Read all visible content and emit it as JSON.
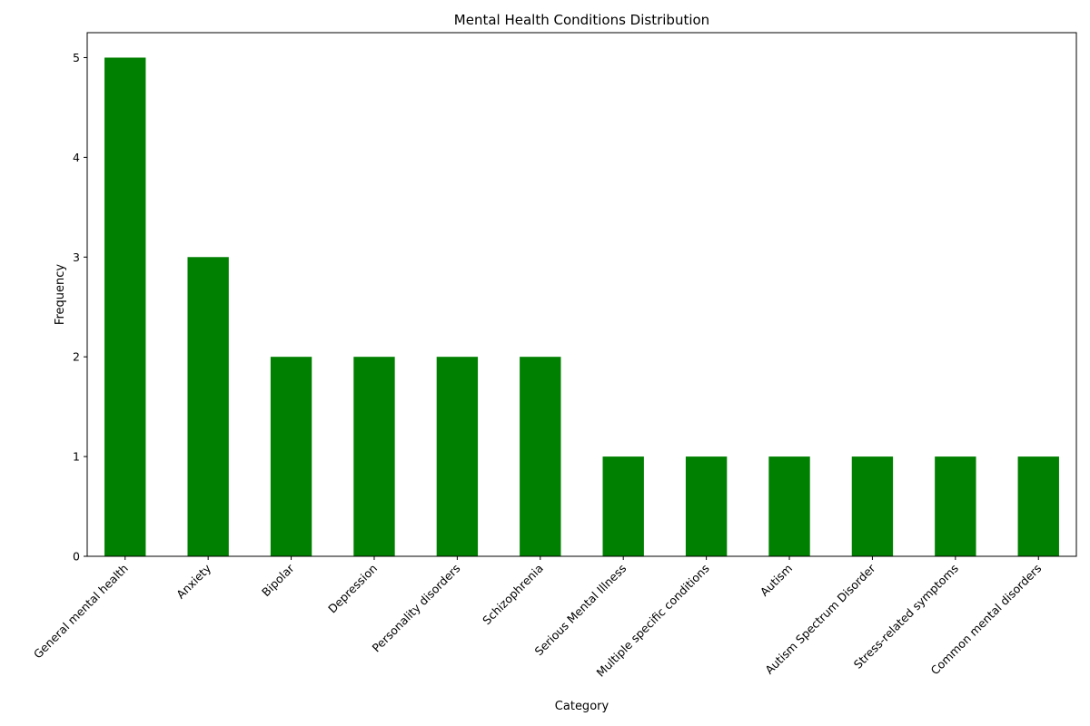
{
  "chart_data": {
    "type": "bar",
    "title": "Mental Health Conditions Distribution",
    "xlabel": "Category",
    "ylabel": "Frequency",
    "categories": [
      "General mental health",
      "Anxiety",
      "Bipolar",
      "Depression",
      "Personality disorders",
      "Schizophrenia",
      "Serious Mental Illness",
      "Multiple specific conditions",
      "Autism",
      "Autism Spectrum Disorder",
      "Stress-related symptoms",
      "Common mental disorders"
    ],
    "values": [
      5,
      3,
      2,
      2,
      2,
      2,
      1,
      1,
      1,
      1,
      1,
      1
    ],
    "ylim": [
      0,
      5.25
    ],
    "yticks": [
      0,
      1,
      2,
      3,
      4,
      5
    ],
    "bar_color": "#008000",
    "grid": false,
    "legend": "none"
  }
}
